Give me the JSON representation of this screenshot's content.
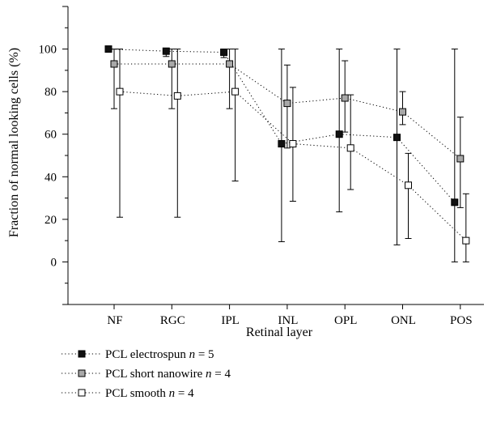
{
  "chart_data": {
    "type": "scatter",
    "title": "",
    "xlabel": "Retinal layer",
    "ylabel": "Fraction of normal looking cells (%)",
    "categories": [
      "NF",
      "RGC",
      "IPL",
      "INL",
      "OPL",
      "ONL",
      "POS"
    ],
    "ylim": [
      -20,
      120
    ],
    "yticks": [
      0,
      20,
      40,
      60,
      80,
      100
    ],
    "grid": false,
    "legend_position": "bottom-left",
    "series": [
      {
        "name": "PCL electrospun",
        "n_label": "n = 5",
        "color": "#111111",
        "values": [
          100,
          99,
          98.5,
          55.5,
          60,
          58.5,
          28
        ],
        "err_low": [
          100,
          96.5,
          96,
          9.5,
          23.5,
          8,
          0
        ],
        "err_high": [
          100,
          100,
          100,
          100,
          100,
          100,
          100
        ]
      },
      {
        "name": "PCL short nanowire",
        "n_label": "n = 4",
        "color": "#a8a8a8",
        "values": [
          93,
          93,
          93,
          74.5,
          77,
          70.5,
          48.5
        ],
        "err_low": [
          72,
          72,
          72,
          53.5,
          61,
          64.5,
          25.5
        ],
        "err_high": [
          100,
          100,
          100,
          92.5,
          94.5,
          80,
          68
        ]
      },
      {
        "name": "PCL smooth",
        "n_label": "n = 4",
        "color": "#ffffff",
        "values": [
          80,
          78,
          80,
          55.5,
          53.5,
          36,
          10
        ],
        "err_low": [
          21,
          21,
          38,
          28.5,
          34,
          11,
          0
        ],
        "err_high": [
          100,
          100,
          100,
          82,
          78.5,
          51,
          32
        ]
      }
    ]
  }
}
